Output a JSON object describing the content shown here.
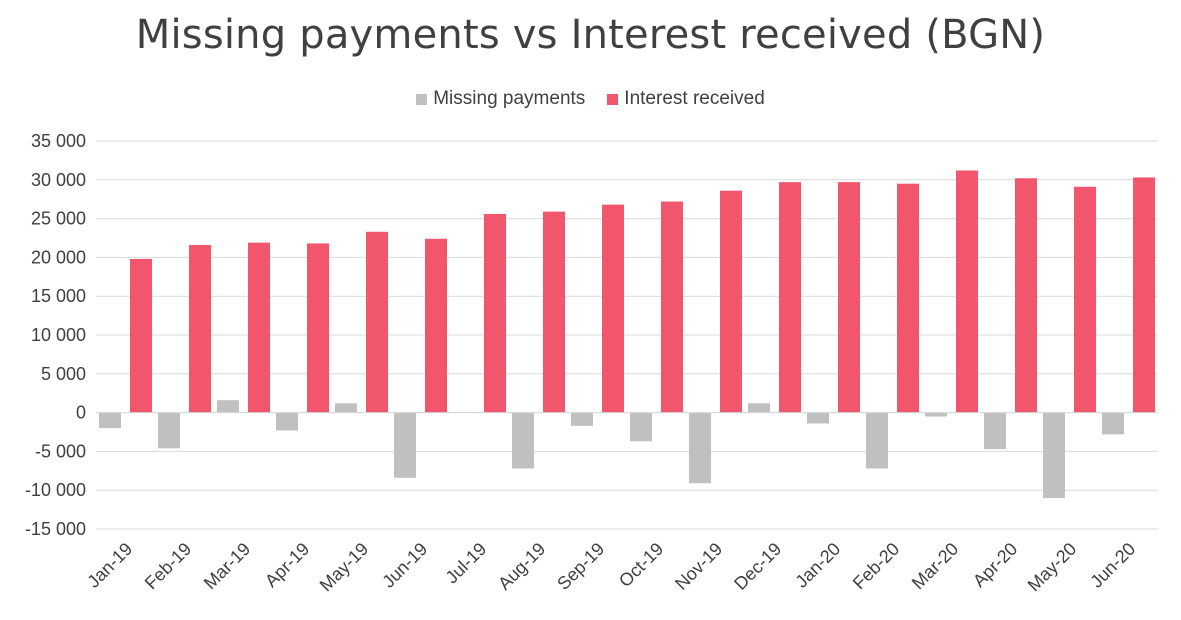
{
  "chart_data": {
    "type": "bar",
    "title": "Missing payments vs Interest received (BGN)",
    "xlabel": "",
    "ylabel": "",
    "categories": [
      "Jan-19",
      "Feb-19",
      "Mar-19",
      "Apr-19",
      "May-19",
      "Jun-19",
      "Jul-19",
      "Aug-19",
      "Sep-19",
      "Oct-19",
      "Nov-19",
      "Dec-19",
      "Jan-20",
      "Feb-20",
      "Mar-20",
      "Apr-20",
      "May-20",
      "Jun-20"
    ],
    "series": [
      {
        "name": "Missing payments",
        "color": "#c0c0c0",
        "values": [
          -2000,
          -4600,
          1600,
          -2300,
          1200,
          -8400,
          0,
          -7200,
          -1700,
          -3700,
          -9100,
          1200,
          -1400,
          -7200,
          -500,
          -4700,
          -11000,
          -2800
        ]
      },
      {
        "name": "Interest received",
        "color": "#f2566c",
        "values": [
          19800,
          21600,
          21900,
          21800,
          23300,
          22400,
          25600,
          25900,
          26800,
          27200,
          28600,
          29700,
          29700,
          29500,
          31200,
          30200,
          29100,
          30300
        ]
      }
    ],
    "ylim": [
      -15000,
      35000
    ],
    "yticks": [
      35000,
      30000,
      25000,
      20000,
      15000,
      10000,
      5000,
      0,
      -5000,
      -10000,
      -15000
    ],
    "ytick_labels": [
      "35 000",
      "30 000",
      "25 000",
      "20 000",
      "15 000",
      "10 000",
      "5 000",
      "0",
      "-5 000",
      "-10 000",
      "-15 000"
    ],
    "grid": true,
    "legend_position": "top-center"
  }
}
